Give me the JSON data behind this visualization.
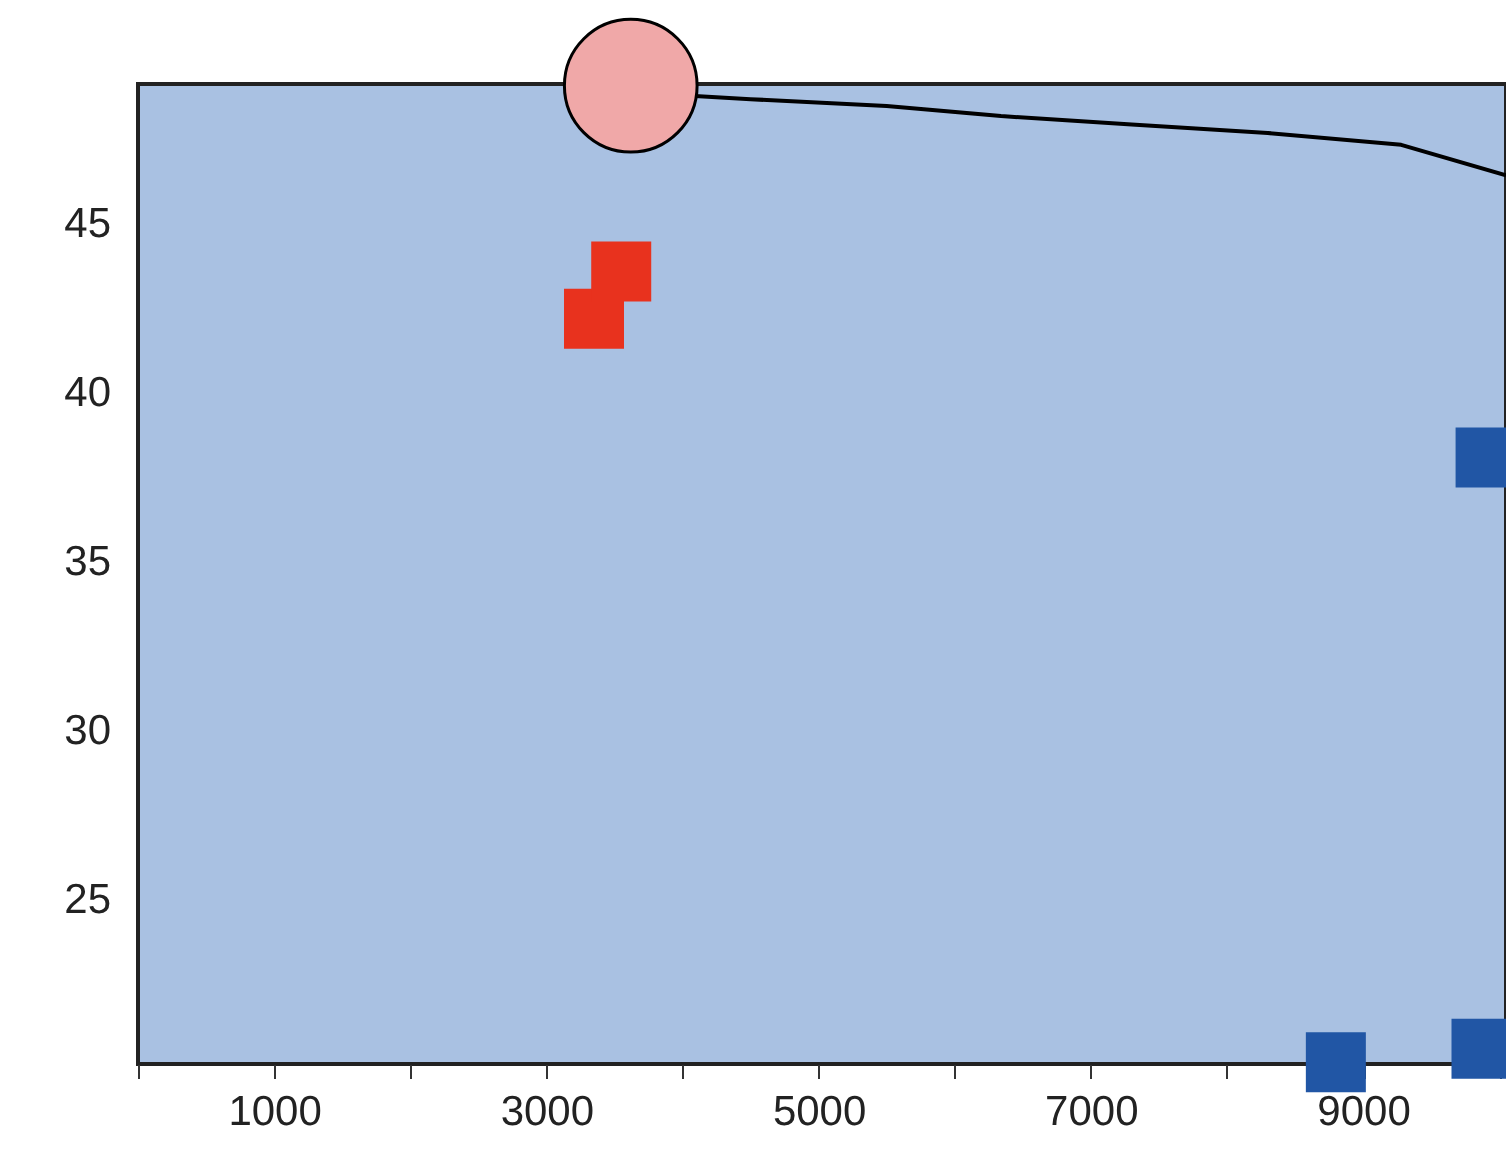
{
  "chart_data": {
    "type": "scatter",
    "xlim": [
      0,
      10050
    ],
    "ylim": [
      20.15,
      49.15
    ],
    "xticks": [
      {
        "value": 0,
        "label": null
      },
      1000,
      {
        "value": 2000,
        "label": null
      },
      3000,
      {
        "value": 4000,
        "label": null
      },
      5000,
      {
        "value": 6000,
        "label": null
      },
      7000,
      {
        "value": 8000,
        "label": null
      },
      9000,
      {
        "value": 10000,
        "label": null
      }
    ],
    "yticks": [
      25,
      30,
      35,
      40,
      45
    ],
    "grid": false,
    "series": [
      {
        "type": "scatter",
        "marker": "square",
        "color": "#e8321e",
        "x": [
          3350,
          3550
        ],
        "values": [
          42.2,
          43.6
        ]
      },
      {
        "type": "scatter",
        "marker": "square",
        "color": "#2156a5",
        "x": [
          8800,
          9870,
          9900
        ],
        "values": [
          20.2,
          20.6,
          38.1
        ]
      },
      {
        "type": "line",
        "marker": "none",
        "color": "#000000",
        "x": [
          4060,
          4500,
          5500,
          6340,
          7300,
          8300,
          9280,
          10050
        ],
        "values": [
          48.8,
          48.7,
          48.5,
          48.2,
          47.95,
          47.7,
          47.35,
          46.45
        ]
      },
      {
        "type": "scatter",
        "marker": "circle",
        "color": "#f0a8a8",
        "x": [
          3620
        ],
        "values": [
          49.1
        ]
      }
    ]
  }
}
